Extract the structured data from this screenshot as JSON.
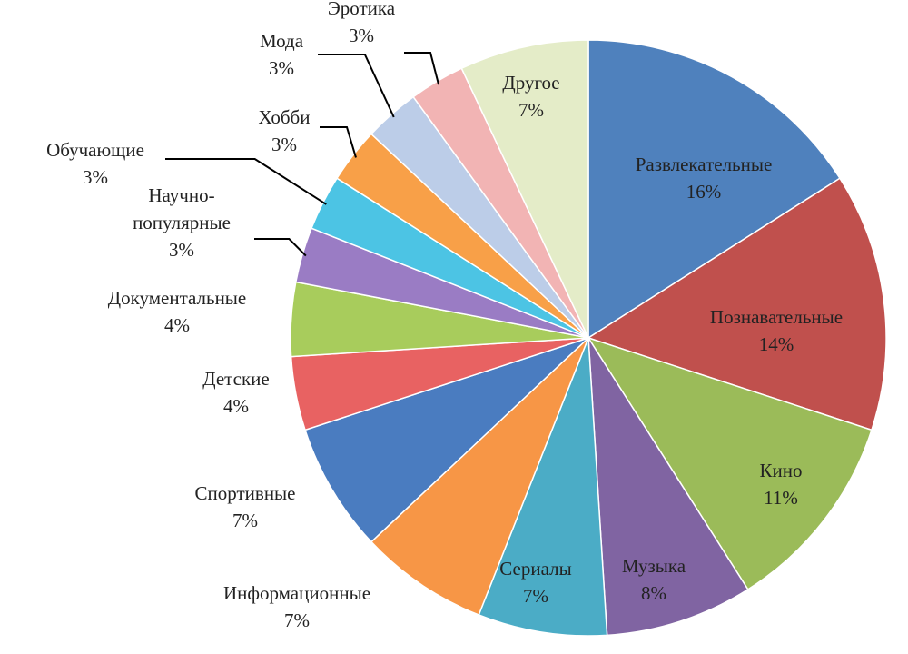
{
  "chart_data": {
    "type": "pie",
    "categories": [
      "Развлекательные",
      "Познавательные",
      "Кино",
      "Музыка",
      "Сериалы",
      "Информационные",
      "Спортивные",
      "Детские",
      "Документальные",
      "Научно-популярные",
      "Обучающие",
      "Хобби",
      "Мода",
      "Эротика",
      "Другое"
    ],
    "values": [
      16,
      14,
      11,
      8,
      7,
      7,
      7,
      4,
      4,
      3,
      3,
      3,
      3,
      3,
      7
    ],
    "value_labels": [
      "16%",
      "14%",
      "11%",
      "8%",
      "7%",
      "7%",
      "7%",
      "4%",
      "4%",
      "3%",
      "3%",
      "3%",
      "3%",
      "3%",
      "7%"
    ],
    "colors": [
      "#4f81bd",
      "#c0504d",
      "#9bbb59",
      "#8064a2",
      "#4bacc6",
      "#f79646",
      "#4a7cc0",
      "#e86262",
      "#a8cc5c",
      "#9a7cc4",
      "#4cc4e4",
      "#f8a048",
      "#bccde8",
      "#f2b4b4",
      "#e4ecc8"
    ]
  }
}
